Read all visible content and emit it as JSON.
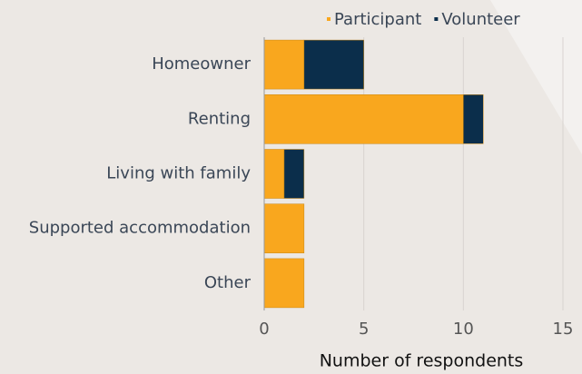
{
  "chart_data": {
    "type": "stacked-barh",
    "categories": [
      "Homeowner",
      "Renting",
      "Living with family",
      "Supported accommodation",
      "Other"
    ],
    "series": [
      {
        "name": "Participant",
        "color": "#f9a71e",
        "values": [
          2,
          10,
          1,
          2,
          2
        ]
      },
      {
        "name": "Volunteer",
        "color": "#0b2e4b",
        "values": [
          3,
          1,
          1,
          0,
          0
        ]
      }
    ],
    "xlabel": "Number of respondents",
    "xlim": [
      0,
      15
    ],
    "xticks": [
      0,
      5,
      10,
      15
    ],
    "grid": true,
    "legend": "top"
  }
}
